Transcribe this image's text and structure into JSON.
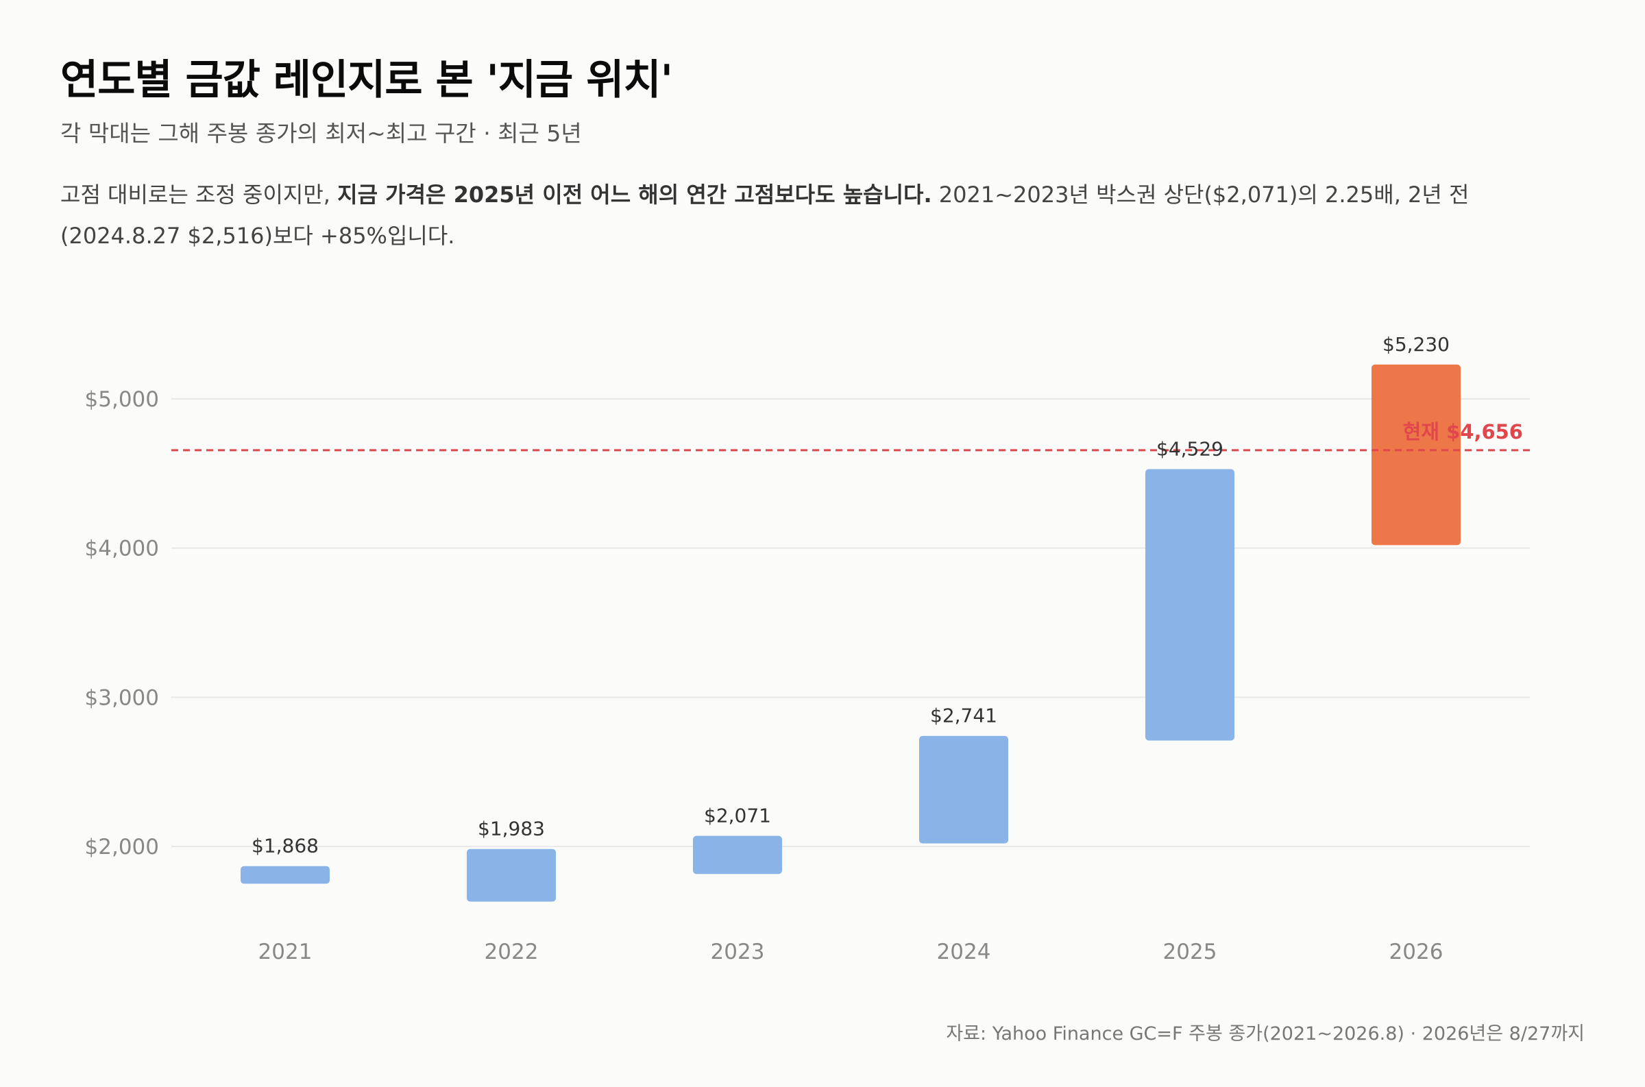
{
  "header": {
    "title": "연도별 금값 레인지로 본 '지금 위치'",
    "subtitle": "각 막대는 그해 주봉 종가의 최저~최고 구간 · 최근 5년"
  },
  "description": {
    "part1": "고점 대비로는 조정 중이지만, ",
    "bold": "지금 가격은 2025년 이전 어느 해의 연간 고점보다도 높습니다.",
    "part2": " 2021~2023년 박스권 상단($2,071)의 2.25배, 2년 전 (2024.8.27 $2,516)보다 +85%입니다."
  },
  "chart_data": {
    "type": "bar",
    "subtype": "floating-range",
    "categories": [
      "2021",
      "2022",
      "2023",
      "2024",
      "2025",
      "2026"
    ],
    "series": [
      {
        "low": [
          1750,
          1630,
          1815,
          2020,
          2710,
          4020
        ],
        "high": [
          1868,
          1983,
          2071,
          2741,
          4529,
          5230
        ],
        "labels": [
          "$1,868",
          "$1,983",
          "$2,071",
          "$2,741",
          "$4,529",
          "$5,230"
        ],
        "colors": [
          "#8ab4e8",
          "#8ab4e8",
          "#8ab4e8",
          "#8ab4e8",
          "#8ab4e8",
          "#ee774a"
        ]
      }
    ],
    "yticks": [
      2000,
      3000,
      4000,
      5000
    ],
    "ytick_labels": [
      "$2,000",
      "$3,000",
      "$4,000",
      "$5,000"
    ],
    "ylim": [
      1500,
      5500
    ],
    "grid": true,
    "reference_line": {
      "value": 4656,
      "label": "현재 $4,656",
      "color": "#e0474c",
      "style": "dashed"
    }
  },
  "colors": {
    "bar": "#8ab4e8",
    "highlight_bar": "#ee774a",
    "reference": "#e0474c",
    "grid": "#e8e8e8",
    "axis_text": "#888888",
    "value_text": "#333333"
  },
  "footer": {
    "source": "자료: Yahoo Finance GC=F 주봉 종가(2021~2026.8) · 2026년은 8/27까지"
  }
}
